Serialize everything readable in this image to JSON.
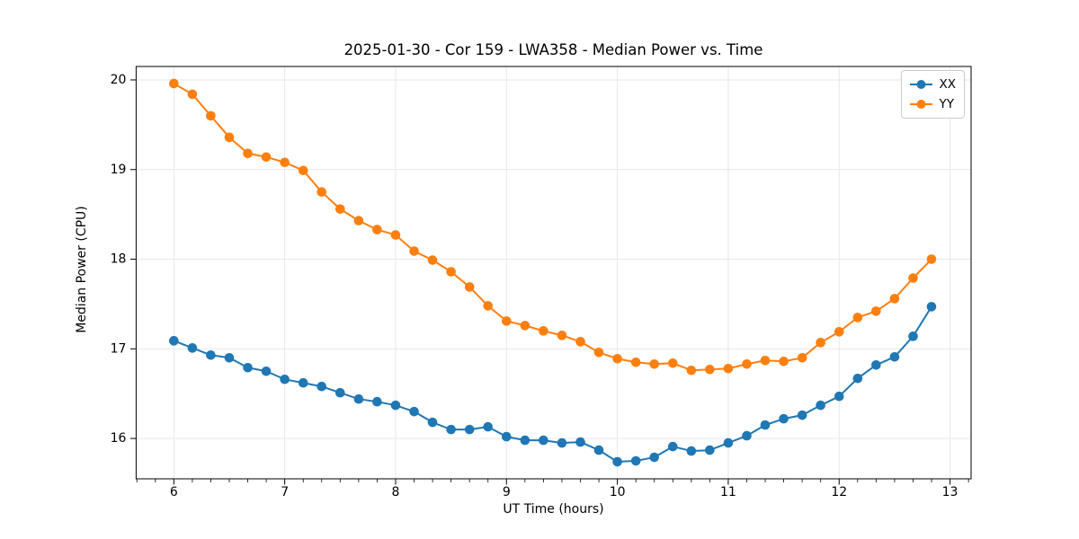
{
  "figure": {
    "kind": "matplotlib-line-figure"
  },
  "chart_data": {
    "type": "line",
    "title": "2025-01-30 - Cor 159 - LWA358 - Median Power vs. Time",
    "xlabel": "UT Time (hours)",
    "ylabel": "Median Power (CPU)",
    "xlim": [
      5.66,
      13.19
    ],
    "ylim": [
      15.55,
      20.15
    ],
    "x_major_ticks": [
      6,
      7,
      8,
      9,
      10,
      11,
      12,
      13
    ],
    "y_major_ticks": [
      16,
      17,
      18,
      19,
      20
    ],
    "x_minor_per_major": 6,
    "grid": true,
    "grid_color": "#e7e7e7",
    "spine_color": "#000000",
    "legend_position": "upper right",
    "x_step_minutes": 10,
    "x": [
      6.0,
      6.167,
      6.333,
      6.5,
      6.667,
      6.833,
      7.0,
      7.167,
      7.333,
      7.5,
      7.667,
      7.833,
      8.0,
      8.167,
      8.333,
      8.5,
      8.667,
      8.833,
      9.0,
      9.167,
      9.333,
      9.5,
      9.667,
      9.833,
      10.0,
      10.167,
      10.333,
      10.5,
      10.667,
      10.833,
      11.0,
      11.167,
      11.333,
      11.5,
      11.667,
      11.833,
      12.0,
      12.167,
      12.333,
      12.5,
      12.667,
      12.833
    ],
    "series": [
      {
        "name": "XX",
        "color": "#1f77b4",
        "values": [
          17.09,
          17.01,
          16.93,
          16.9,
          16.79,
          16.75,
          16.66,
          16.62,
          16.58,
          16.51,
          16.44,
          16.41,
          16.37,
          16.3,
          16.18,
          16.1,
          16.1,
          16.13,
          16.02,
          15.98,
          15.98,
          15.95,
          15.96,
          15.87,
          15.74,
          15.75,
          15.79,
          15.91,
          15.86,
          15.87,
          15.95,
          16.03,
          16.15,
          16.22,
          16.26,
          16.37,
          16.47,
          16.67,
          16.82,
          16.91,
          17.14,
          17.47
        ]
      },
      {
        "name": "YY",
        "color": "#ff7f0e",
        "values": [
          19.96,
          19.84,
          19.6,
          19.36,
          19.18,
          19.14,
          19.08,
          18.99,
          18.75,
          18.56,
          18.43,
          18.33,
          18.27,
          18.09,
          17.99,
          17.86,
          17.69,
          17.48,
          17.31,
          17.26,
          17.2,
          17.15,
          17.08,
          16.96,
          16.89,
          16.85,
          16.83,
          16.84,
          16.76,
          16.77,
          16.78,
          16.83,
          16.87,
          16.86,
          16.9,
          17.07,
          17.19,
          17.35,
          17.42,
          17.56,
          17.79,
          18.0
        ]
      }
    ]
  }
}
